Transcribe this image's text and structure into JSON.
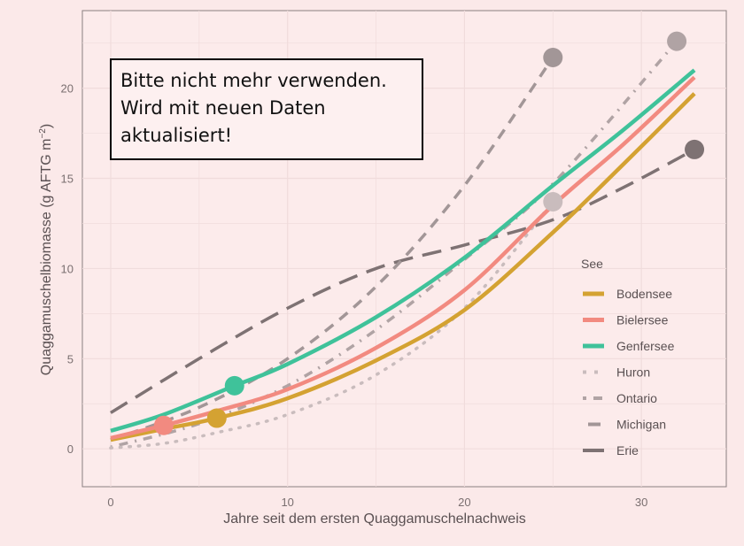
{
  "chart_data": {
    "type": "line",
    "xlabel": "Jahre seit dem ersten Quaggamuschelnachweis",
    "ylabel": "Quaggamuschelbiomasse (g AFTG m",
    "ylabel_sup": "−2",
    "ylabel_close": ")",
    "xlim": [
      -1.6,
      34.8
    ],
    "ylim": [
      -2.1,
      24.3
    ],
    "xticks": [
      0,
      10,
      20,
      30
    ],
    "yticks": [
      0,
      5,
      10,
      15,
      20
    ],
    "grid": true,
    "legend": {
      "title": "See",
      "placement": "right"
    },
    "series": [
      {
        "name": "Bodensee",
        "color": "#d4a232",
        "dash": "solid",
        "x": [
          0,
          3,
          6,
          10,
          15,
          20,
          25,
          29,
          33
        ],
        "y": [
          0.5,
          1.1,
          1.7,
          2.8,
          4.9,
          7.7,
          12,
          15.8,
          19.7
        ],
        "point": [
          6,
          1.7
        ]
      },
      {
        "name": "Bielersee",
        "color": "#f28a80",
        "dash": "solid",
        "x": [
          0,
          3,
          6,
          10,
          15,
          20,
          25,
          29,
          33
        ],
        "y": [
          0.6,
          1.3,
          2.1,
          3.3,
          5.6,
          8.8,
          13.5,
          16.9,
          20.6
        ],
        "point": [
          3,
          1.3
        ]
      },
      {
        "name": "Genfersee",
        "color": "#3fc29a",
        "dash": "solid",
        "x": [
          0,
          3,
          7,
          10,
          15,
          20,
          25,
          29,
          33
        ],
        "y": [
          1.0,
          1.9,
          3.5,
          4.7,
          7.3,
          10.6,
          14.6,
          17.7,
          21.0
        ],
        "point": [
          7,
          3.5
        ]
      },
      {
        "name": "Huron",
        "color": "#c9bcbd",
        "dash": "dotted",
        "x": [
          0,
          3,
          6,
          10,
          15,
          20,
          25
        ],
        "y": [
          0.05,
          0.3,
          0.9,
          1.9,
          4.1,
          7.8,
          13.7
        ],
        "point": [
          25,
          13.7
        ]
      },
      {
        "name": "Ontario",
        "color": "#b0a3a4",
        "dash": "dotdash",
        "x": [
          0,
          5,
          10,
          15,
          20,
          25,
          32
        ],
        "y": [
          0.1,
          1.4,
          3.5,
          6.6,
          10.5,
          14.7,
          22.6
        ],
        "point": [
          32,
          22.6
        ]
      },
      {
        "name": "Michigan",
        "color": "#a29697",
        "dash": "dashed",
        "x": [
          0,
          5,
          10,
          15,
          20,
          25
        ],
        "y": [
          0.5,
          2.3,
          5.0,
          9.0,
          14.6,
          21.7
        ],
        "point": [
          25,
          21.7
        ]
      },
      {
        "name": "Erie",
        "color": "#7e7273",
        "dash": "longdash",
        "x": [
          0,
          5,
          10,
          15,
          20,
          25,
          29,
          33
        ],
        "y": [
          2.0,
          5.0,
          7.8,
          10.0,
          11.3,
          12.7,
          14.5,
          16.6
        ],
        "point": [
          33,
          16.6
        ]
      }
    ]
  },
  "note": {
    "lines": [
      "Bitte nicht mehr verwenden.",
      "Wird mit neuen Daten",
      "aktualisiert!"
    ]
  }
}
